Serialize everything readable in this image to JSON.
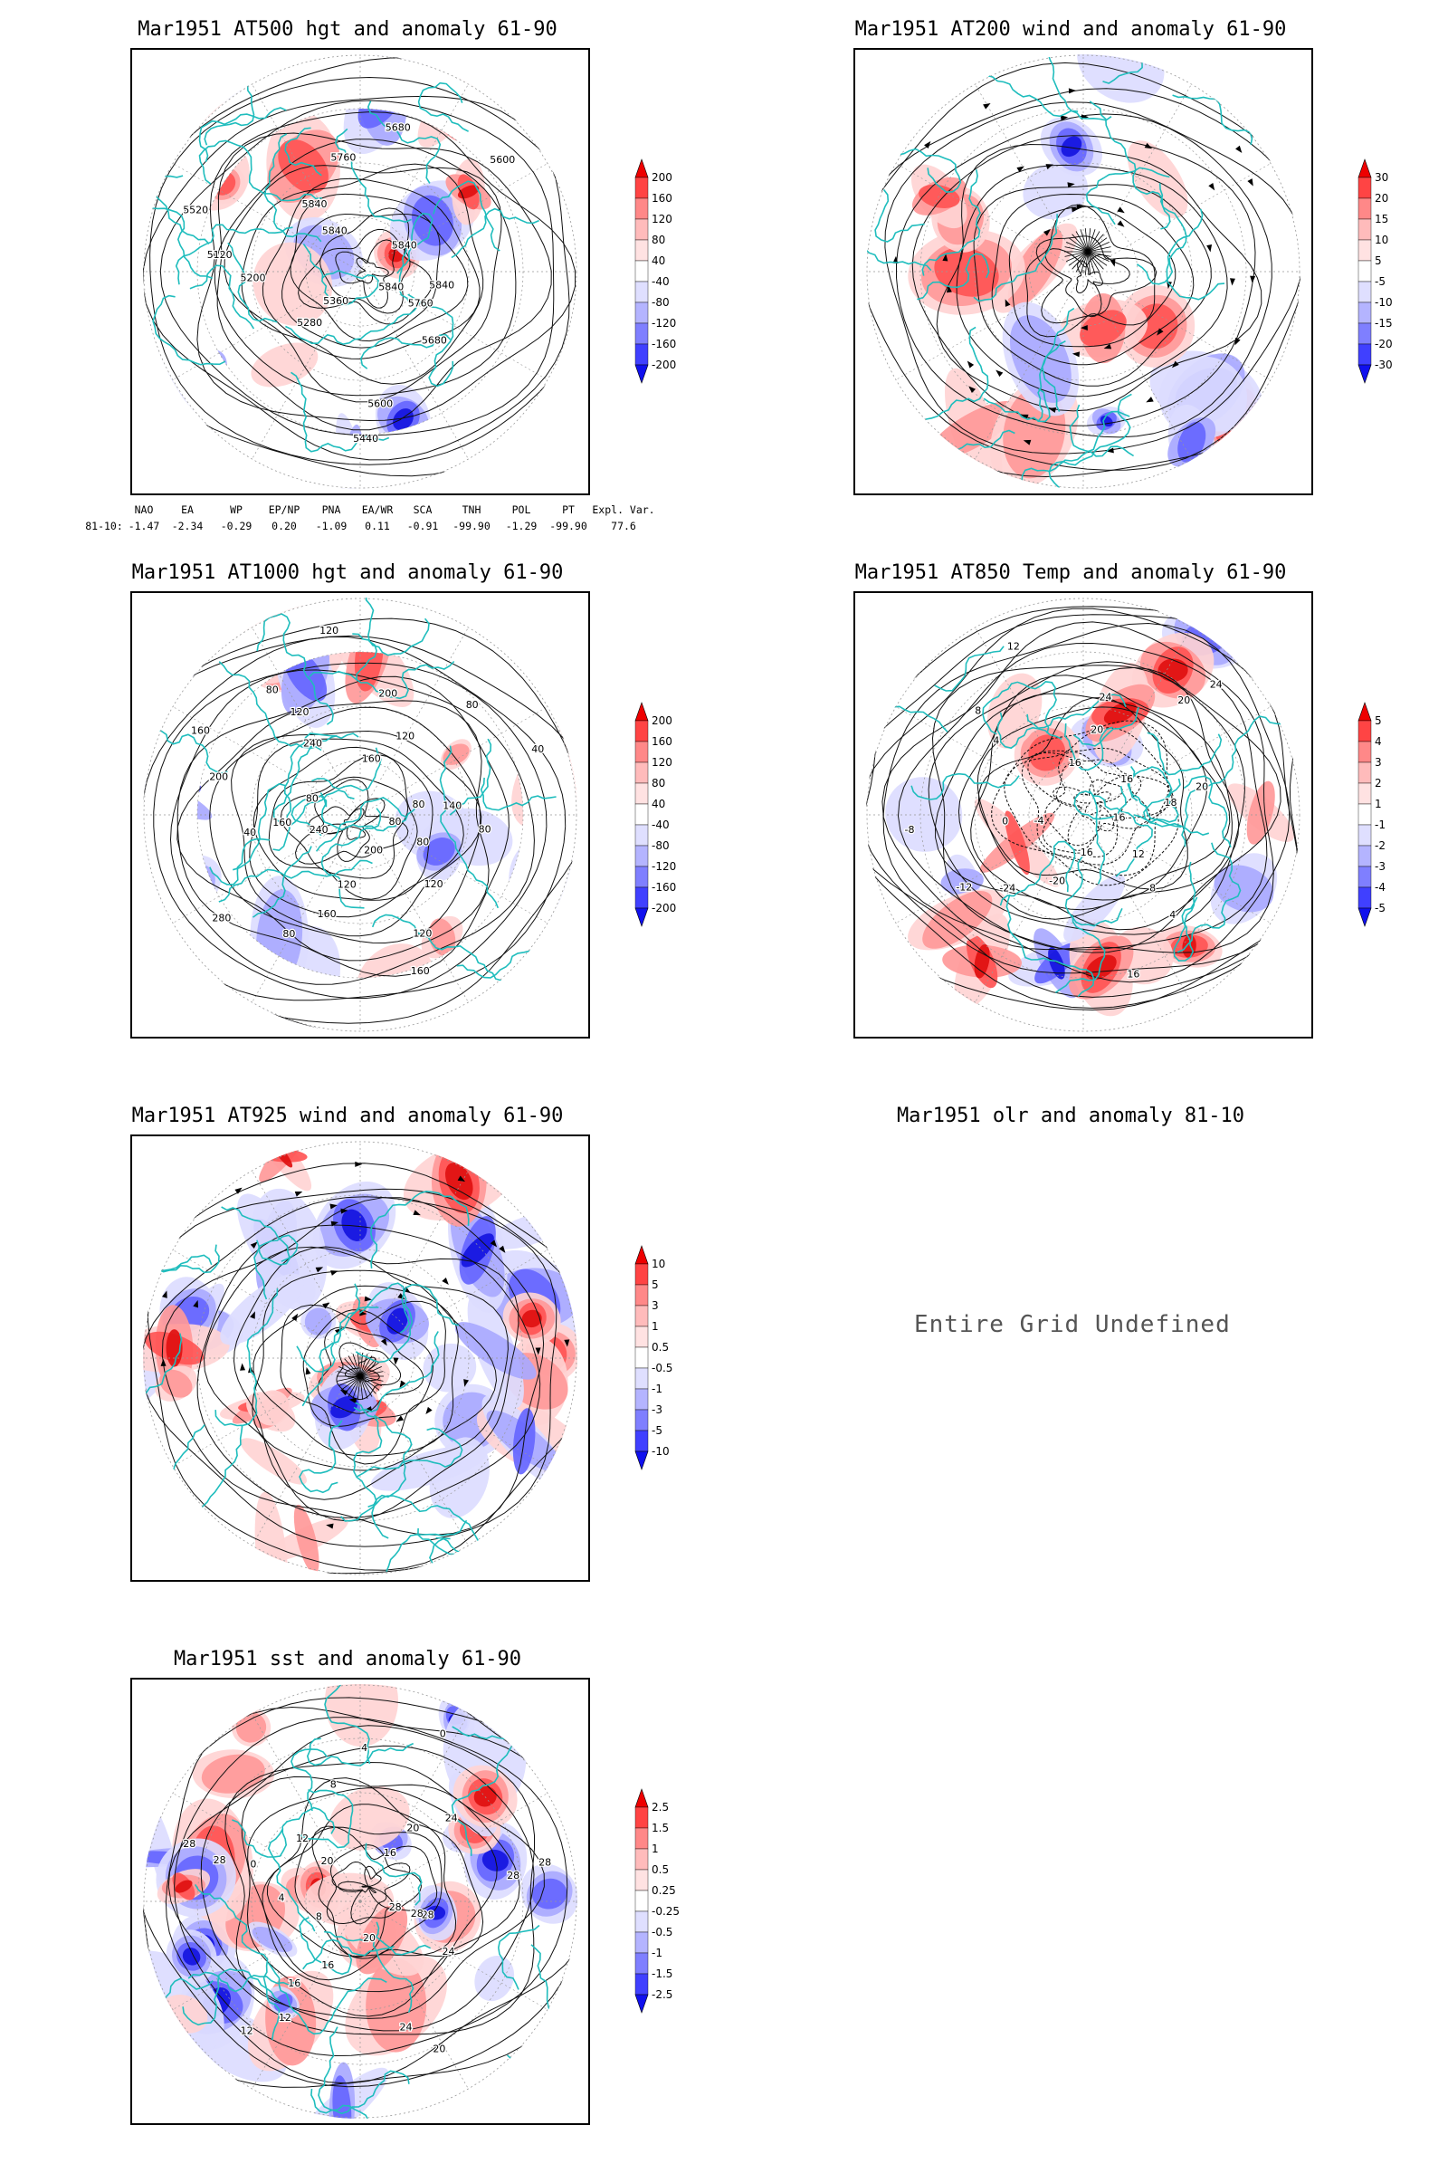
{
  "colors": {
    "coast": "#1fbdbd",
    "contour": "#111111",
    "grid": "#999999",
    "red": "#e02020",
    "blue": "#2020e0"
  },
  "panels": [
    {
      "id": "p1",
      "title": "Mar1951 AT500 hgt and anomaly 61-90",
      "contour_labels": [
        "5840",
        "5760",
        "5680",
        "5600",
        "5440",
        "5360",
        "5280",
        "5200",
        "5120",
        "5520",
        "5840",
        "5840",
        "5760",
        "5680",
        "5600",
        "5840",
        "5840"
      ],
      "colorbar": [
        "200",
        "160",
        "120",
        "80",
        "40",
        "-40",
        "-80",
        "-120",
        "-160",
        "-200"
      ]
    },
    {
      "id": "p2",
      "title": "Mar1951 AT200 wind and anomaly 61-90",
      "colorbar": [
        "30",
        "20",
        "15",
        "10",
        "5",
        "-5",
        "-10",
        "-15",
        "-20",
        "-30"
      ]
    },
    {
      "id": "p3",
      "title": "Mar1951 AT1000 hgt and anomaly 61-90",
      "contour_labels": [
        "80",
        "80",
        "120",
        "120",
        "160",
        "200",
        "120",
        "160",
        "80",
        "280",
        "240",
        "160",
        "40",
        "200",
        "160",
        "80",
        "240",
        "120",
        "80",
        "120",
        "160",
        "120",
        "200",
        "80",
        "40",
        "80",
        "140",
        "80"
      ],
      "colorbar": [
        "200",
        "160",
        "120",
        "80",
        "40",
        "-40",
        "-80",
        "-120",
        "-160",
        "-200"
      ]
    },
    {
      "id": "p4",
      "title": "Mar1951 AT850 Temp and anomaly 61-90",
      "contour_labels": [
        "16",
        "12",
        "8",
        "4",
        "16",
        "-16",
        "-20",
        "-24",
        "-12",
        "-8",
        "-4",
        "0",
        "4",
        "8",
        "12",
        "16",
        "20",
        "24",
        "20",
        "24",
        "16",
        "18",
        "20"
      ],
      "colorbar": [
        "5",
        "4",
        "3",
        "2",
        "1",
        "-1",
        "-2",
        "-3",
        "-4",
        "-5"
      ]
    },
    {
      "id": "p5",
      "title": "Mar1951 AT925 wind and anomaly 61-90",
      "colorbar": [
        "10",
        "5",
        "3",
        "1",
        "0.5",
        "-0.5",
        "-1",
        "-3",
        "-5",
        "-10"
      ]
    },
    {
      "id": "p6",
      "title": "Mar1951 olr and anomaly 81-10",
      "message": "Entire Grid Undefined"
    },
    {
      "id": "p7",
      "title": "Mar1951 sst and anomaly 61-90",
      "contour_labels": [
        "28",
        "28",
        "24",
        "24",
        "20",
        "20",
        "16",
        "16",
        "12",
        "12",
        "8",
        "4",
        "0",
        "28",
        "28",
        "20",
        "12",
        "8",
        "4",
        "0",
        "16",
        "20",
        "24",
        "28",
        "28",
        "28"
      ],
      "colorbar": [
        "2.5",
        "1.5",
        "1",
        "0.5",
        "0.25",
        "-0.25",
        "-0.5",
        "-1",
        "-1.5",
        "-2.5"
      ]
    }
  ],
  "teleconnection": {
    "headers": [
      "NAO",
      "EA",
      "WP",
      "EP/NP",
      "PNA",
      "EA/WR",
      "SCA",
      "TNH",
      "POL",
      "PT",
      "Expl. Var."
    ],
    "row_label": "81-10:",
    "values": [
      "-1.47",
      "-2.34",
      "-0.29",
      "0.20",
      "-1.09",
      "0.11",
      "-0.91",
      "-99.90",
      "-1.29",
      "-99.90",
      "77.6"
    ]
  }
}
